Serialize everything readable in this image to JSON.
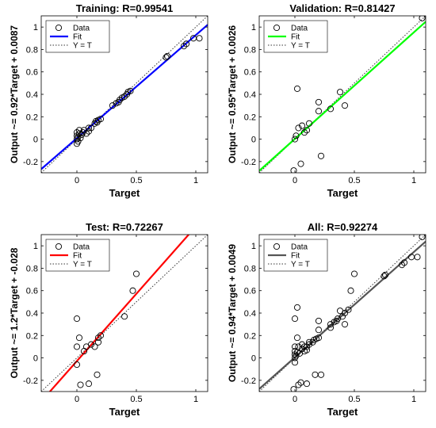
{
  "chart_data": [
    {
      "type": "scatter",
      "title": "Training: R=0.99541",
      "xlabel": "Target",
      "ylabel": "Output ~= 0.92*Target + 0.0087",
      "xlim": [
        -0.3,
        1.1
      ],
      "ylim": [
        -0.3,
        1.1
      ],
      "xticks": [
        "0",
        "0.5",
        "1"
      ],
      "yticks": [
        "-0.2",
        "0",
        "0.2",
        "0.4",
        "0.6",
        "0.8",
        "1"
      ],
      "fit": {
        "slope": 0.92,
        "intercept": 0.0087,
        "color": "#0000ff"
      },
      "legend": [
        "Data",
        "Fit",
        "Y = T"
      ],
      "legend_position": "top-left",
      "points": [
        [
          0,
          -0.04
        ],
        [
          0,
          0
        ],
        [
          0,
          0.03
        ],
        [
          0,
          0.06
        ],
        [
          0.01,
          -0.02
        ],
        [
          0.01,
          0.02
        ],
        [
          0.02,
          0.05
        ],
        [
          0.02,
          0.08
        ],
        [
          0.03,
          0.01
        ],
        [
          0.04,
          0.04
        ],
        [
          0.05,
          0.06
        ],
        [
          0.06,
          0.08
        ],
        [
          0.08,
          0.05
        ],
        [
          0.1,
          0.07
        ],
        [
          0.1,
          0.1
        ],
        [
          0.12,
          0.1
        ],
        [
          0.15,
          0.14
        ],
        [
          0.16,
          0.16
        ],
        [
          0.17,
          0.15
        ],
        [
          0.18,
          0.17
        ],
        [
          0.2,
          0.18
        ],
        [
          0.3,
          0.3
        ],
        [
          0.33,
          0.32
        ],
        [
          0.35,
          0.33
        ],
        [
          0.36,
          0.35
        ],
        [
          0.38,
          0.37
        ],
        [
          0.4,
          0.38
        ],
        [
          0.42,
          0.4
        ],
        [
          0.43,
          0.42
        ],
        [
          0.45,
          0.43
        ],
        [
          0.75,
          0.73
        ],
        [
          0.76,
          0.74
        ],
        [
          0.9,
          0.83
        ],
        [
          0.92,
          0.85
        ],
        [
          0.98,
          0.9
        ],
        [
          1.03,
          0.9
        ]
      ]
    },
    {
      "type": "scatter",
      "title": "Validation: R=0.81427",
      "xlabel": "Target",
      "ylabel": "Output ~= 0.95*Target + 0.0026",
      "xlim": [
        -0.3,
        1.1
      ],
      "ylim": [
        -0.3,
        1.1
      ],
      "xticks": [
        "0",
        "0.5",
        "1"
      ],
      "yticks": [
        "-0.2",
        "0",
        "0.2",
        "0.4",
        "0.6",
        "0.8",
        "1"
      ],
      "fit": {
        "slope": 0.95,
        "intercept": 0.0026,
        "color": "#00ff00"
      },
      "legend": [
        "Data",
        "Fit",
        "Y = T"
      ],
      "legend_position": "top-left",
      "points": [
        [
          -0.01,
          -0.28
        ],
        [
          0,
          0
        ],
        [
          0.01,
          0.03
        ],
        [
          0.02,
          0.45
        ],
        [
          0.03,
          0.1
        ],
        [
          0.05,
          -0.22
        ],
        [
          0.06,
          0.12
        ],
        [
          0.08,
          0.06
        ],
        [
          0.1,
          0.08
        ],
        [
          0.12,
          0.14
        ],
        [
          0.2,
          0.33
        ],
        [
          0.2,
          0.25
        ],
        [
          0.22,
          -0.15
        ],
        [
          0.3,
          0.27
        ],
        [
          0.38,
          0.42
        ],
        [
          0.42,
          0.3
        ],
        [
          1.07,
          1.08
        ]
      ]
    },
    {
      "type": "scatter",
      "title": "Test: R=0.72267",
      "xlabel": "Target",
      "ylabel": "Output ~= 1.2*Target + -0.028",
      "xlim": [
        -0.3,
        1.1
      ],
      "ylim": [
        -0.3,
        1.1
      ],
      "xticks": [
        "0",
        "0.5",
        "1"
      ],
      "yticks": [
        "-0.2",
        "0",
        "0.2",
        "0.4",
        "0.6",
        "0.8",
        "1"
      ],
      "fit": {
        "slope": 1.2,
        "intercept": -0.028,
        "color": "#ff0000"
      },
      "legend": [
        "Data",
        "Fit",
        "Y = T"
      ],
      "legend_position": "top-left",
      "points": [
        [
          0,
          0.35
        ],
        [
          0,
          0.1
        ],
        [
          0,
          -0.06
        ],
        [
          0.02,
          0.18
        ],
        [
          0.03,
          -0.24
        ],
        [
          0.06,
          0.06
        ],
        [
          0.08,
          0.1
        ],
        [
          0.1,
          -0.23
        ],
        [
          0.12,
          0.12
        ],
        [
          0.15,
          0.1
        ],
        [
          0.17,
          -0.15
        ],
        [
          0.18,
          0.14
        ],
        [
          0.18,
          0.18
        ],
        [
          0.2,
          0.2
        ],
        [
          0.4,
          0.37
        ],
        [
          0.47,
          0.6
        ],
        [
          0.5,
          0.75
        ]
      ]
    },
    {
      "type": "scatter",
      "title": "All: R=0.92274",
      "xlabel": "Target",
      "ylabel": "Output ~= 0.94*Target + 0.0049",
      "xlim": [
        -0.3,
        1.1
      ],
      "ylim": [
        -0.3,
        1.1
      ],
      "xticks": [
        "0",
        "0.5",
        "1"
      ],
      "yticks": [
        "-0.2",
        "0",
        "0.2",
        "0.4",
        "0.6",
        "0.8",
        "1"
      ],
      "fit": {
        "slope": 0.94,
        "intercept": 0.0049,
        "color": "#555555"
      },
      "legend": [
        "Data",
        "Fit",
        "Y = T"
      ],
      "legend_position": "top-left",
      "points": [
        [
          -0.01,
          -0.28
        ],
        [
          0,
          -0.04
        ],
        [
          0,
          0
        ],
        [
          0,
          0.03
        ],
        [
          0,
          0.06
        ],
        [
          0,
          0.35
        ],
        [
          0,
          0.1
        ],
        [
          0.01,
          0.02
        ],
        [
          0.02,
          0.45
        ],
        [
          0.02,
          0.05
        ],
        [
          0.02,
          0.18
        ],
        [
          0.03,
          -0.24
        ],
        [
          0.03,
          0.1
        ],
        [
          0.04,
          0.04
        ],
        [
          0.05,
          -0.22
        ],
        [
          0.06,
          0.12
        ],
        [
          0.06,
          0.08
        ],
        [
          0.08,
          0.06
        ],
        [
          0.08,
          0.1
        ],
        [
          0.1,
          0.07
        ],
        [
          0.1,
          0.1
        ],
        [
          0.1,
          -0.23
        ],
        [
          0.12,
          0.14
        ],
        [
          0.12,
          0.12
        ],
        [
          0.15,
          0.14
        ],
        [
          0.16,
          0.16
        ],
        [
          0.17,
          -0.15
        ],
        [
          0.18,
          0.17
        ],
        [
          0.2,
          0.18
        ],
        [
          0.2,
          0.33
        ],
        [
          0.2,
          0.25
        ],
        [
          0.22,
          -0.15
        ],
        [
          0.3,
          0.3
        ],
        [
          0.3,
          0.27
        ],
        [
          0.33,
          0.32
        ],
        [
          0.35,
          0.33
        ],
        [
          0.36,
          0.35
        ],
        [
          0.38,
          0.42
        ],
        [
          0.4,
          0.37
        ],
        [
          0.42,
          0.3
        ],
        [
          0.42,
          0.4
        ],
        [
          0.45,
          0.43
        ],
        [
          0.47,
          0.6
        ],
        [
          0.5,
          0.75
        ],
        [
          0.75,
          0.73
        ],
        [
          0.76,
          0.74
        ],
        [
          0.9,
          0.83
        ],
        [
          0.92,
          0.85
        ],
        [
          0.98,
          0.9
        ],
        [
          1.03,
          0.9
        ],
        [
          1.07,
          1.08
        ]
      ]
    }
  ]
}
